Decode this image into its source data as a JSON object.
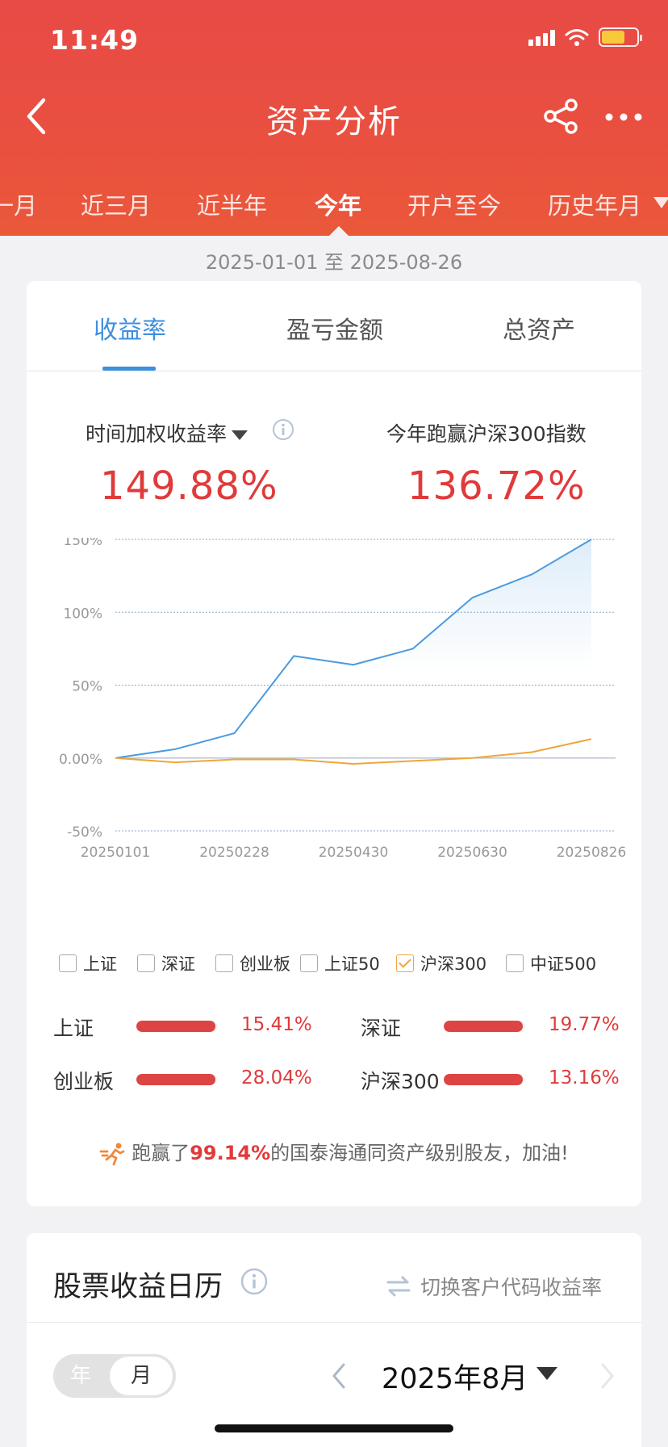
{
  "status_bar": {
    "time": "11:49"
  },
  "nav": {
    "title": "资产分析"
  },
  "period_tabs": [
    {
      "label": "一月"
    },
    {
      "label": "近三月"
    },
    {
      "label": "近半年"
    },
    {
      "label": "今年"
    },
    {
      "label": "开户至今"
    },
    {
      "label": "历史年月"
    }
  ],
  "date_range": "2025-01-01 至 2025-08-26",
  "metric_tabs": [
    {
      "label": "收益率"
    },
    {
      "label": "盈亏金额"
    },
    {
      "label": "总资产"
    }
  ],
  "metrics": {
    "left_label": "时间加权收益率",
    "left_value": "149.88%",
    "right_label": "今年跑赢沪深300指数",
    "right_value": "136.72%"
  },
  "chart_data": {
    "type": "line",
    "x": [
      "20250101",
      "20250201",
      "20250228",
      "20250331",
      "20250430",
      "20250531",
      "20250630",
      "20250731",
      "20250826"
    ],
    "x_tick_labels": [
      "20250101",
      "20250228",
      "20250430",
      "20250630",
      "20250826"
    ],
    "y_tick_labels": [
      "150%",
      "100%",
      "50%",
      "0.00%",
      "-50%"
    ],
    "ylim": [
      -50,
      150
    ],
    "grid": true,
    "series": [
      {
        "values": [
          0,
          6,
          17,
          70,
          64,
          75,
          110,
          126,
          150
        ],
        "color": "#4a9ae0"
      },
      {
        "values": [
          0,
          -3,
          -1,
          -1,
          -4,
          -2,
          0,
          4,
          13
        ],
        "color": "#f0a53a"
      }
    ]
  },
  "legend": [
    {
      "label": "上证",
      "checked": false
    },
    {
      "label": "深证",
      "checked": false
    },
    {
      "label": "创业板",
      "checked": false
    },
    {
      "label": "上证50",
      "checked": false
    },
    {
      "label": "沪深300",
      "checked": true
    },
    {
      "label": "中证500",
      "checked": false
    }
  ],
  "indices": [
    {
      "name": "上证",
      "value": "15.41%"
    },
    {
      "name": "深证",
      "value": "19.77%"
    },
    {
      "name": "创业板",
      "value": "28.04%"
    },
    {
      "name": "沪深300",
      "value": "13.16%"
    }
  ],
  "beat": {
    "prefix": "跑赢了",
    "percent": "99.14%",
    "suffix": "的国泰海通同资产级别股友，加油!"
  },
  "calendar": {
    "title": "股票收益日历",
    "switch_label": "切换客户代码收益率",
    "year_label": "年",
    "month_label": "月",
    "current_month": "2025年8月"
  },
  "colors": {
    "header": "#e84a45",
    "accent_blue": "#3f8fdf",
    "gain_red": "#e03a3a",
    "benchmark_orange": "#f0a53a"
  }
}
